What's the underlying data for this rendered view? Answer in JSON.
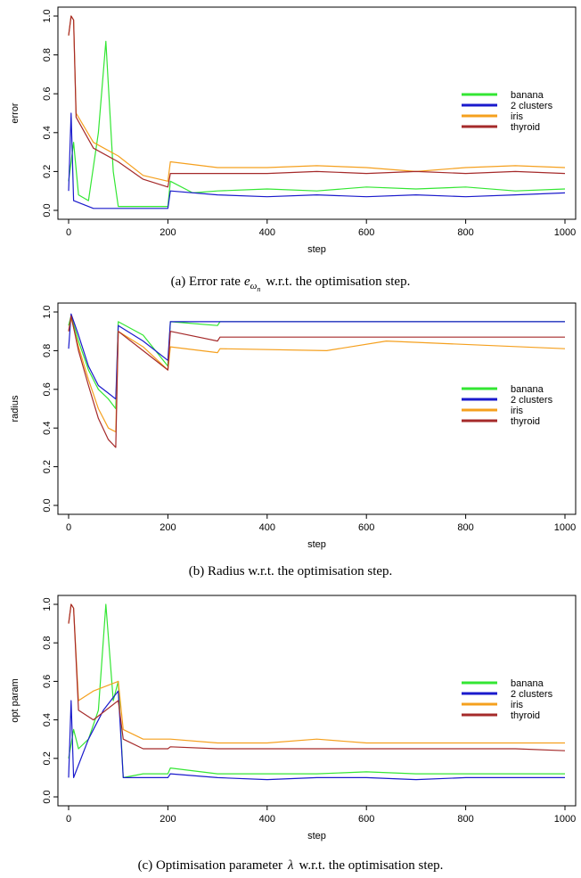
{
  "colors": {
    "banana": "#33e633",
    "2 clusters": "#1a1acc",
    "iris": "#f5a01e",
    "thyroid": "#a52a2a"
  },
  "captions": {
    "a_prefix": "(a)  Error rate",
    "a_symbol": "e",
    "a_sub": "ω",
    "a_subsub": "n",
    "a_suffix": "w.r.t. the optimisation step.",
    "b": "(b)  Radius w.r.t. the optimisation step.",
    "c_prefix": "(c)  Optimisation parameter",
    "c_symbol": "λ",
    "c_suffix": "w.r.t. the optimisation step."
  },
  "chart_data": [
    {
      "id": "error",
      "type": "line",
      "xlabel": "step",
      "ylabel": "error",
      "xlim": [
        0,
        1000
      ],
      "ylim": [
        0,
        1.0
      ],
      "xticks": [
        "0",
        "200",
        "400",
        "600",
        "800",
        "1000"
      ],
      "yticks": [
        "0.0",
        "0.2",
        "0.4",
        "0.6",
        "0.8",
        "1.0"
      ],
      "legend_position": "right",
      "series": [
        {
          "name": "banana",
          "points": [
            [
              0,
              0.15
            ],
            [
              10,
              0.35
            ],
            [
              20,
              0.08
            ],
            [
              40,
              0.05
            ],
            [
              60,
              0.4
            ],
            [
              75,
              0.87
            ],
            [
              90,
              0.2
            ],
            [
              100,
              0.02
            ],
            [
              150,
              0.02
            ],
            [
              200,
              0.02
            ],
            [
              205,
              0.15
            ],
            [
              250,
              0.09
            ],
            [
              300,
              0.1
            ],
            [
              400,
              0.11
            ],
            [
              500,
              0.1
            ],
            [
              600,
              0.12
            ],
            [
              700,
              0.11
            ],
            [
              800,
              0.12
            ],
            [
              900,
              0.1
            ],
            [
              1000,
              0.11
            ]
          ]
        },
        {
          "name": "2 clusters",
          "points": [
            [
              0,
              0.1
            ],
            [
              5,
              0.5
            ],
            [
              10,
              0.05
            ],
            [
              50,
              0.01
            ],
            [
              100,
              0.01
            ],
            [
              150,
              0.01
            ],
            [
              200,
              0.01
            ],
            [
              205,
              0.1
            ],
            [
              300,
              0.08
            ],
            [
              400,
              0.07
            ],
            [
              500,
              0.08
            ],
            [
              600,
              0.07
            ],
            [
              700,
              0.08
            ],
            [
              800,
              0.07
            ],
            [
              900,
              0.08
            ],
            [
              1000,
              0.09
            ]
          ]
        },
        {
          "name": "iris",
          "points": [
            [
              0,
              0.9
            ],
            [
              5,
              1.0
            ],
            [
              10,
              0.98
            ],
            [
              15,
              0.5
            ],
            [
              50,
              0.35
            ],
            [
              100,
              0.28
            ],
            [
              150,
              0.18
            ],
            [
              200,
              0.15
            ],
            [
              205,
              0.25
            ],
            [
              300,
              0.22
            ],
            [
              400,
              0.22
            ],
            [
              500,
              0.23
            ],
            [
              600,
              0.22
            ],
            [
              700,
              0.2
            ],
            [
              800,
              0.22
            ],
            [
              900,
              0.23
            ],
            [
              1000,
              0.22
            ]
          ]
        },
        {
          "name": "thyroid",
          "points": [
            [
              0,
              0.9
            ],
            [
              5,
              1.0
            ],
            [
              10,
              0.98
            ],
            [
              15,
              0.48
            ],
            [
              50,
              0.32
            ],
            [
              100,
              0.25
            ],
            [
              150,
              0.16
            ],
            [
              200,
              0.12
            ],
            [
              205,
              0.19
            ],
            [
              300,
              0.19
            ],
            [
              400,
              0.19
            ],
            [
              500,
              0.2
            ],
            [
              600,
              0.19
            ],
            [
              700,
              0.2
            ],
            [
              800,
              0.19
            ],
            [
              900,
              0.2
            ],
            [
              1000,
              0.19
            ]
          ]
        }
      ]
    },
    {
      "id": "radius",
      "type": "line",
      "xlabel": "step",
      "ylabel": "radius",
      "xlim": [
        0,
        1000
      ],
      "ylim": [
        0,
        1.0
      ],
      "xticks": [
        "0",
        "200",
        "400",
        "600",
        "800",
        "1000"
      ],
      "yticks": [
        "0.0",
        "0.2",
        "0.4",
        "0.6",
        "0.8",
        "1.0"
      ],
      "legend_position": "right",
      "series": [
        {
          "name": "banana",
          "points": [
            [
              0,
              0.93
            ],
            [
              5,
              0.98
            ],
            [
              20,
              0.85
            ],
            [
              40,
              0.7
            ],
            [
              60,
              0.6
            ],
            [
              80,
              0.55
            ],
            [
              95,
              0.5
            ],
            [
              100,
              0.95
            ],
            [
              150,
              0.88
            ],
            [
              200,
              0.72
            ],
            [
              205,
              0.95
            ],
            [
              300,
              0.93
            ],
            [
              305,
              0.95
            ],
            [
              1000,
              0.95
            ]
          ]
        },
        {
          "name": "2 clusters",
          "points": [
            [
              0,
              0.81
            ],
            [
              5,
              0.99
            ],
            [
              20,
              0.88
            ],
            [
              40,
              0.72
            ],
            [
              60,
              0.62
            ],
            [
              80,
              0.58
            ],
            [
              95,
              0.55
            ],
            [
              100,
              0.93
            ],
            [
              150,
              0.85
            ],
            [
              200,
              0.75
            ],
            [
              205,
              0.95
            ],
            [
              300,
              0.95
            ],
            [
              1000,
              0.95
            ]
          ]
        },
        {
          "name": "iris",
          "points": [
            [
              0,
              0.9
            ],
            [
              5,
              0.97
            ],
            [
              20,
              0.82
            ],
            [
              40,
              0.65
            ],
            [
              60,
              0.5
            ],
            [
              80,
              0.4
            ],
            [
              95,
              0.38
            ],
            [
              100,
              0.9
            ],
            [
              150,
              0.82
            ],
            [
              200,
              0.7
            ],
            [
              205,
              0.82
            ],
            [
              300,
              0.79
            ],
            [
              305,
              0.81
            ],
            [
              520,
              0.8
            ],
            [
              640,
              0.85
            ],
            [
              1000,
              0.81
            ]
          ]
        },
        {
          "name": "thyroid",
          "points": [
            [
              0,
              0.9
            ],
            [
              5,
              0.98
            ],
            [
              20,
              0.8
            ],
            [
              40,
              0.62
            ],
            [
              60,
              0.45
            ],
            [
              80,
              0.34
            ],
            [
              95,
              0.3
            ],
            [
              100,
              0.9
            ],
            [
              150,
              0.8
            ],
            [
              200,
              0.7
            ],
            [
              205,
              0.9
            ],
            [
              300,
              0.85
            ],
            [
              305,
              0.87
            ],
            [
              400,
              0.87
            ],
            [
              1000,
              0.87
            ]
          ]
        }
      ]
    },
    {
      "id": "opt",
      "type": "line",
      "xlabel": "step",
      "ylabel": "opt param",
      "xlim": [
        0,
        1000
      ],
      "ylim": [
        0,
        1.0
      ],
      "xticks": [
        "0",
        "200",
        "400",
        "600",
        "800",
        "1000"
      ],
      "yticks": [
        "0.0",
        "0.2",
        "0.4",
        "0.6",
        "0.8",
        "1.0"
      ],
      "legend_position": "right",
      "series": [
        {
          "name": "banana",
          "points": [
            [
              0,
              0.2
            ],
            [
              10,
              0.35
            ],
            [
              20,
              0.25
            ],
            [
              40,
              0.3
            ],
            [
              60,
              0.45
            ],
            [
              75,
              1.0
            ],
            [
              90,
              0.5
            ],
            [
              100,
              0.6
            ],
            [
              110,
              0.1
            ],
            [
              150,
              0.12
            ],
            [
              200,
              0.12
            ],
            [
              205,
              0.15
            ],
            [
              300,
              0.12
            ],
            [
              400,
              0.12
            ],
            [
              500,
              0.12
            ],
            [
              600,
              0.13
            ],
            [
              700,
              0.12
            ],
            [
              800,
              0.12
            ],
            [
              900,
              0.12
            ],
            [
              1000,
              0.12
            ]
          ]
        },
        {
          "name": "2 clusters",
          "points": [
            [
              0,
              0.1
            ],
            [
              5,
              0.5
            ],
            [
              10,
              0.1
            ],
            [
              40,
              0.3
            ],
            [
              70,
              0.45
            ],
            [
              100,
              0.55
            ],
            [
              110,
              0.1
            ],
            [
              150,
              0.1
            ],
            [
              200,
              0.1
            ],
            [
              205,
              0.12
            ],
            [
              300,
              0.1
            ],
            [
              400,
              0.09
            ],
            [
              500,
              0.1
            ],
            [
              600,
              0.1
            ],
            [
              700,
              0.09
            ],
            [
              800,
              0.1
            ],
            [
              900,
              0.1
            ],
            [
              1000,
              0.1
            ]
          ]
        },
        {
          "name": "iris",
          "points": [
            [
              0,
              0.9
            ],
            [
              5,
              1.0
            ],
            [
              10,
              0.98
            ],
            [
              20,
              0.5
            ],
            [
              50,
              0.55
            ],
            [
              100,
              0.6
            ],
            [
              110,
              0.35
            ],
            [
              150,
              0.3
            ],
            [
              200,
              0.3
            ],
            [
              205,
              0.3
            ],
            [
              300,
              0.28
            ],
            [
              400,
              0.28
            ],
            [
              500,
              0.3
            ],
            [
              600,
              0.28
            ],
            [
              700,
              0.28
            ],
            [
              800,
              0.28
            ],
            [
              900,
              0.28
            ],
            [
              1000,
              0.28
            ]
          ]
        },
        {
          "name": "thyroid",
          "points": [
            [
              0,
              0.9
            ],
            [
              5,
              1.0
            ],
            [
              10,
              0.98
            ],
            [
              20,
              0.45
            ],
            [
              50,
              0.4
            ],
            [
              100,
              0.5
            ],
            [
              110,
              0.3
            ],
            [
              150,
              0.25
            ],
            [
              200,
              0.25
            ],
            [
              205,
              0.26
            ],
            [
              300,
              0.25
            ],
            [
              400,
              0.25
            ],
            [
              500,
              0.25
            ],
            [
              600,
              0.25
            ],
            [
              700,
              0.25
            ],
            [
              800,
              0.25
            ],
            [
              900,
              0.25
            ],
            [
              1000,
              0.24
            ]
          ]
        }
      ]
    }
  ]
}
